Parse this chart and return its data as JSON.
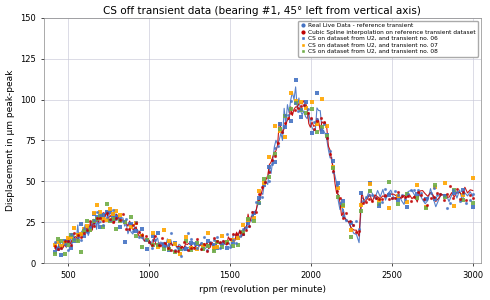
{
  "title": "CS off transient data (bearing #1, 45° left from vertical axis)",
  "xlabel": "rpm (revolution per minute)",
  "ylabel": "Displacement in µm peak-peak",
  "xlim": [
    350,
    3050
  ],
  "ylim": [
    0,
    150
  ],
  "yticks": [
    0,
    25,
    50,
    75,
    100,
    125,
    150
  ],
  "xticks": [
    500,
    1000,
    1500,
    2000,
    2500,
    3000
  ],
  "legend_labels": [
    "Real Live Data - reference transient",
    "Cubic Spline interpolation on reference transient dataset",
    "CS on dataset from U2, and transient no. 06",
    "CS on dataset from U2, and transient no. 07",
    "CS on dataset from U2, and transient no. 08"
  ],
  "colors": {
    "blue": "#4472C4",
    "red": "#C00000",
    "orange": "#FFA500",
    "green": "#70AD47"
  },
  "background_color": "#FFFFFF",
  "grid_color": "#C8C8D8"
}
